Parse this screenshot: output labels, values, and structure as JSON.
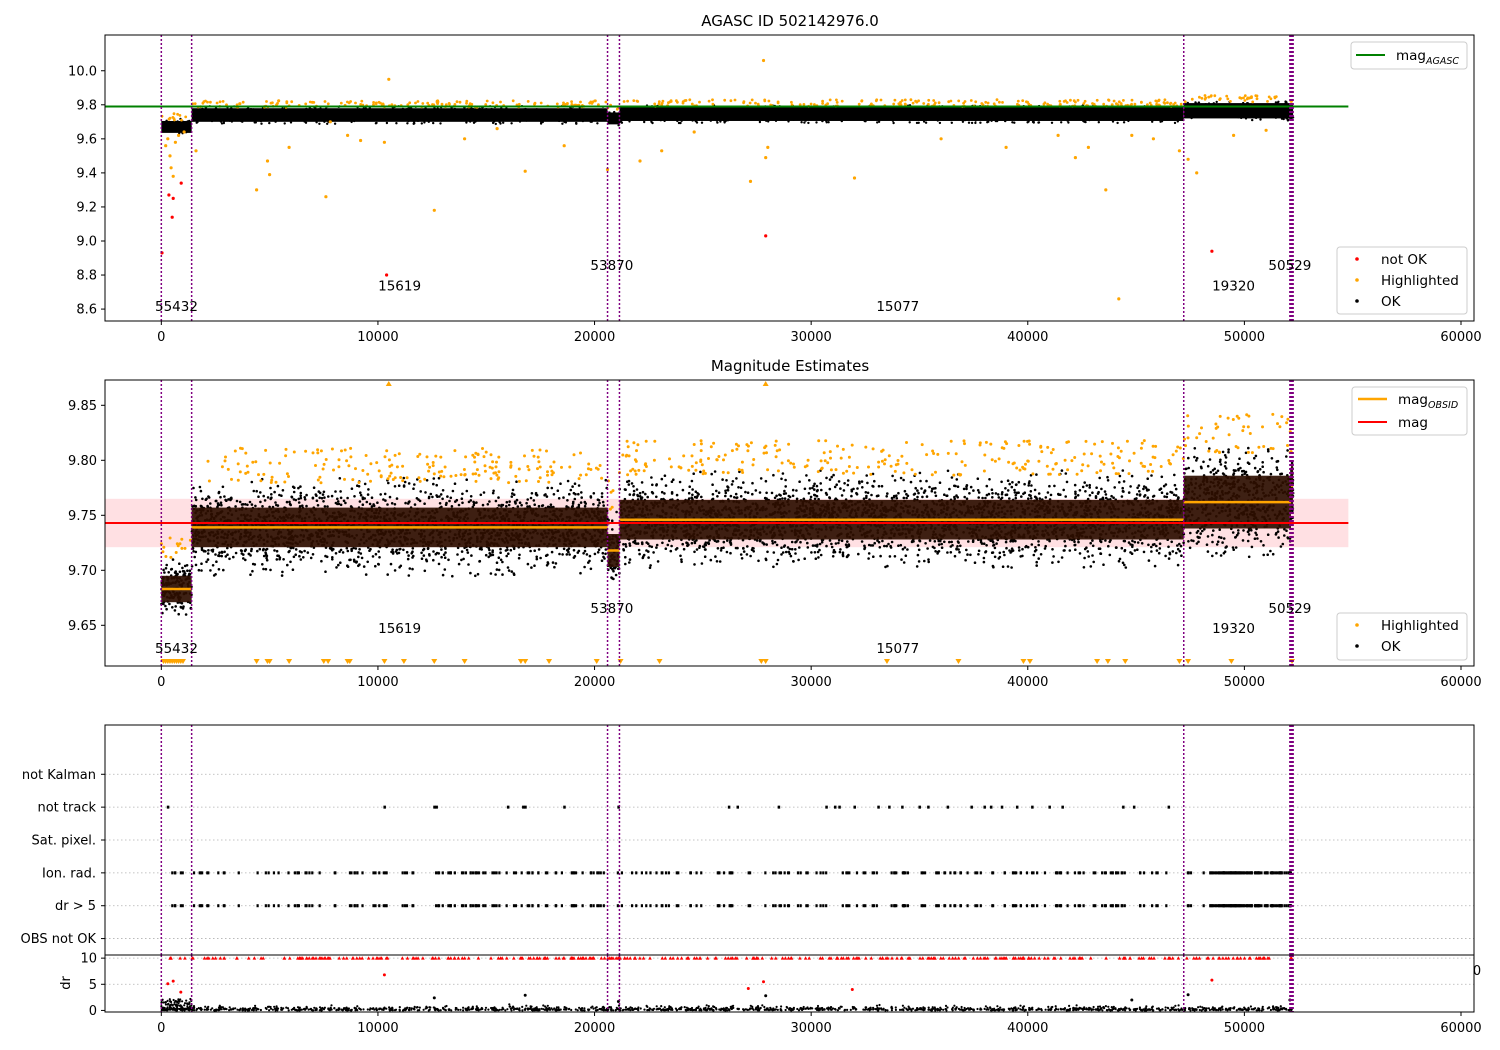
{
  "figure": {
    "background": "#ffffff"
  },
  "colors": {
    "ok": "#000000",
    "highlighted": "#ffa500",
    "not_ok": "#ff0000",
    "mag_agasc": "#008000",
    "mag_obsid": "#ffa500",
    "mag": "#ff0000",
    "mag_band": "#ffe0e3",
    "obs_boundary": "#800080",
    "obs_band": "#2e0e00",
    "grid": "#b0b0b0"
  },
  "chart_data": [
    {
      "type": "scatter",
      "title": "AGASC ID 502142976.0",
      "xlim": [
        -2600,
        60600
      ],
      "ylim": [
        8.53,
        10.21
      ],
      "x_ticks": [
        0,
        10000,
        20000,
        30000,
        40000,
        50000,
        60000
      ],
      "y_ticks": [
        8.6,
        8.8,
        9.0,
        9.2,
        9.4,
        9.6,
        9.8,
        10.0
      ],
      "y_tick_labels": [
        "8.6",
        "8.8",
        "9.0",
        "9.2",
        "9.4",
        "9.6",
        "9.8",
        "10.0"
      ],
      "grid": false,
      "legend": [
        {
          "location": "upper-right",
          "entries": [
            {
              "label": "mag",
              "subscript": "AGASC",
              "marker": "line",
              "color": "#008000"
            }
          ]
        },
        {
          "location": "lower-right",
          "entries": [
            {
              "label": "not OK",
              "marker": "dot",
              "color": "#ff0000"
            },
            {
              "label": "Highlighted",
              "marker": "dot",
              "color": "#ffa500"
            },
            {
              "label": "OK",
              "marker": "dot",
              "color": "#000000"
            }
          ]
        }
      ],
      "lines": [
        {
          "name": "mag_AGASC",
          "color": "#008000",
          "x": [
            -2600,
            54800
          ],
          "y": [
            9.79,
            9.79
          ]
        }
      ],
      "observations": [
        {
          "obsid": "55432",
          "x_start": 0,
          "x_end": 1400,
          "center": 9.67,
          "half_width": 0.035
        },
        {
          "obsid": "15619",
          "x_start": 1400,
          "x_end": 20600,
          "center": 9.74,
          "half_width": 0.04
        },
        {
          "obsid": "53870",
          "x_start": 20600,
          "x_end": 21150,
          "center": 9.72,
          "half_width": 0.035
        },
        {
          "obsid": "15077",
          "x_start": 21150,
          "x_end": 47200,
          "center": 9.745,
          "half_width": 0.04
        },
        {
          "obsid": "19320",
          "x_start": 47200,
          "x_end": 52150,
          "center": 9.765,
          "half_width": 0.045
        },
        {
          "obsid": "50529",
          "x_start": 52150,
          "x_end": 52250,
          "center": 9.76,
          "half_width": 0.04
        }
      ],
      "obs_label_positions": [
        {
          "text": "55432",
          "x": 700,
          "y": 8.59
        },
        {
          "text": "15619",
          "x": 11000,
          "y": 8.71
        },
        {
          "text": "53870",
          "x": 20800,
          "y": 8.83
        },
        {
          "text": "15077",
          "x": 34000,
          "y": 8.59
        },
        {
          "text": "19320",
          "x": 49500,
          "y": 8.71
        },
        {
          "text": "50529",
          "x": 52100,
          "y": 8.83
        }
      ],
      "outliers_not_ok": [
        [
          30,
          8.93
        ],
        [
          350,
          9.27
        ],
        [
          500,
          9.14
        ],
        [
          550,
          9.25
        ],
        [
          920,
          9.34
        ],
        [
          10400,
          8.8
        ],
        [
          27900,
          9.03
        ],
        [
          48500,
          8.94
        ]
      ],
      "outliers_highlighted": [
        [
          200,
          9.56
        ],
        [
          300,
          9.6
        ],
        [
          400,
          9.5
        ],
        [
          450,
          9.43
        ],
        [
          550,
          9.38
        ],
        [
          650,
          9.58
        ],
        [
          800,
          9.62
        ],
        [
          1050,
          9.64
        ],
        [
          1600,
          9.53
        ],
        [
          4400,
          9.3
        ],
        [
          4900,
          9.47
        ],
        [
          5000,
          9.39
        ],
        [
          5900,
          9.55
        ],
        [
          7600,
          9.26
        ],
        [
          7800,
          9.7
        ],
        [
          8600,
          9.62
        ],
        [
          9200,
          9.59
        ],
        [
          10300,
          9.58
        ],
        [
          10500,
          9.95
        ],
        [
          12600,
          9.18
        ],
        [
          14000,
          9.6
        ],
        [
          15500,
          9.66
        ],
        [
          16800,
          9.41
        ],
        [
          18600,
          9.56
        ],
        [
          20600,
          9.42
        ],
        [
          22100,
          9.47
        ],
        [
          23100,
          9.53
        ],
        [
          24600,
          9.64
        ],
        [
          27200,
          9.35
        ],
        [
          27800,
          10.06
        ],
        [
          27900,
          9.49
        ],
        [
          28000,
          9.55
        ],
        [
          32000,
          9.37
        ],
        [
          36000,
          9.6
        ],
        [
          39000,
          9.55
        ],
        [
          41400,
          9.62
        ],
        [
          42200,
          9.49
        ],
        [
          42800,
          9.55
        ],
        [
          43600,
          9.3
        ],
        [
          44200,
          8.66
        ],
        [
          44800,
          9.62
        ],
        [
          45800,
          9.6
        ],
        [
          47000,
          9.53
        ],
        [
          47400,
          9.48
        ],
        [
          47800,
          9.4
        ],
        [
          49500,
          9.62
        ],
        [
          51000,
          9.65
        ]
      ]
    },
    {
      "type": "scatter",
      "title": "Magnitude Estimates",
      "xlim": [
        -2600,
        60600
      ],
      "ylim": [
        9.613,
        9.873
      ],
      "x_ticks": [
        0,
        10000,
        20000,
        30000,
        40000,
        50000,
        60000
      ],
      "y_ticks": [
        9.65,
        9.7,
        9.75,
        9.8,
        9.85
      ],
      "y_tick_labels": [
        "9.65",
        "9.70",
        "9.75",
        "9.80",
        "9.85"
      ],
      "grid": false,
      "legend": [
        {
          "location": "upper-right",
          "entries": [
            {
              "label": "mag",
              "subscript": "OBSID",
              "marker": "line",
              "color": "#ffa500"
            },
            {
              "label": "mag",
              "marker": "line",
              "color": "#ff0000"
            }
          ]
        },
        {
          "location": "lower-right",
          "entries": [
            {
              "label": "Highlighted",
              "marker": "dot",
              "color": "#ffa500"
            },
            {
              "label": "OK",
              "marker": "dot",
              "color": "#000000"
            }
          ]
        }
      ],
      "lines": [
        {
          "name": "mag",
          "color": "#ff0000",
          "x": [
            -2600,
            54800
          ],
          "y": [
            9.743,
            9.743
          ],
          "band": [
            9.721,
            9.765
          ]
        }
      ],
      "observations": [
        {
          "obsid": "55432",
          "x_start": 0,
          "x_end": 1400,
          "mean": 9.683,
          "std": 0.012,
          "spread": 0.03
        },
        {
          "obsid": "15619",
          "x_start": 1400,
          "x_end": 20600,
          "mean": 9.739,
          "std": 0.018,
          "spread": 0.045
        },
        {
          "obsid": "53870",
          "x_start": 20600,
          "x_end": 21150,
          "mean": 9.718,
          "std": 0.015,
          "spread": 0.04
        },
        {
          "obsid": "15077",
          "x_start": 21150,
          "x_end": 47200,
          "mean": 9.746,
          "std": 0.018,
          "spread": 0.045
        },
        {
          "obsid": "19320",
          "x_start": 47200,
          "x_end": 52150,
          "mean": 9.762,
          "std": 0.024,
          "spread": 0.05
        },
        {
          "obsid": "50529",
          "x_start": 52150,
          "x_end": 52250,
          "mean": 9.777,
          "std": 0.02,
          "spread": 0.03
        }
      ],
      "obs_label_positions": [
        {
          "text": "55432",
          "x": 700,
          "y": 9.625
        },
        {
          "text": "15619",
          "x": 11000,
          "y": 9.643
        },
        {
          "text": "53870",
          "x": 20800,
          "y": 9.661
        },
        {
          "text": "15077",
          "x": 34000,
          "y": 9.625
        },
        {
          "text": "19320",
          "x": 49500,
          "y": 9.643
        },
        {
          "text": "50529",
          "x": 52100,
          "y": 9.661
        }
      ]
    },
    {
      "type": "scatter",
      "title": "",
      "xlim": [
        -2600,
        60600
      ],
      "ylim": [
        -0.5,
        6.5
      ],
      "y_tick_labels": [
        "OBS not OK",
        "dr > 5",
        "Ion. rad.",
        "Sat. pixel.",
        "not track",
        "not Kalman"
      ],
      "grid": "y-dotted",
      "flags": [
        {
          "name": "not Kalman",
          "row": 5,
          "x": []
        },
        {
          "name": "not track",
          "row": 4,
          "x": [
            300,
            10300,
            12600,
            12700,
            16000,
            16700,
            16800,
            18600,
            21100,
            26200,
            26600,
            28500,
            30700,
            31100,
            31300,
            32000,
            33100,
            33600,
            34200,
            35000,
            35400,
            36300,
            37400,
            38000,
            38300,
            38800,
            39500,
            40200,
            41000,
            41600,
            44400,
            44900,
            46500
          ]
        },
        {
          "name": "Sat. pixel.",
          "row": 3,
          "x": []
        },
        {
          "name": "Ion. rad.",
          "row": 2,
          "x": []
        },
        {
          "name": "dr > 5",
          "row": 1,
          "x": []
        },
        {
          "name": "OBS not OK",
          "row": 0,
          "x": []
        }
      ],
      "dense_flag_rows": [
        "Ion. rad.",
        "dr > 5"
      ],
      "dense_flag_range": [
        0,
        52200
      ]
    },
    {
      "type": "scatter",
      "title": "",
      "xlim": [
        -2600,
        60600
      ],
      "ylim": [
        -0.3,
        10.6
      ],
      "x_ticks": [
        0,
        10000,
        20000,
        30000,
        40000,
        50000,
        60000
      ],
      "y_ticks": [
        0,
        5,
        10
      ],
      "y_tick_labels": [
        "0",
        "5",
        "10"
      ],
      "ylabel": "dr",
      "grid": "y-dotted",
      "hidden_tick_fragment": "0",
      "capped_value": 10,
      "ok_range": [
        0,
        1.2
      ],
      "high_points": [
        [
          300,
          5.1
        ],
        [
          550,
          5.6
        ],
        [
          900,
          3.5
        ],
        [
          10300,
          6.8
        ],
        [
          12600,
          2.4
        ],
        [
          16800,
          2.9
        ],
        [
          21100,
          1.7
        ],
        [
          27100,
          4.2
        ],
        [
          27800,
          5.5
        ],
        [
          27900,
          2.8
        ],
        [
          31900,
          4.0
        ],
        [
          44800,
          2.0
        ],
        [
          47400,
          3.0
        ],
        [
          48500,
          5.8
        ],
        [
          52100,
          2.0
        ]
      ]
    }
  ]
}
